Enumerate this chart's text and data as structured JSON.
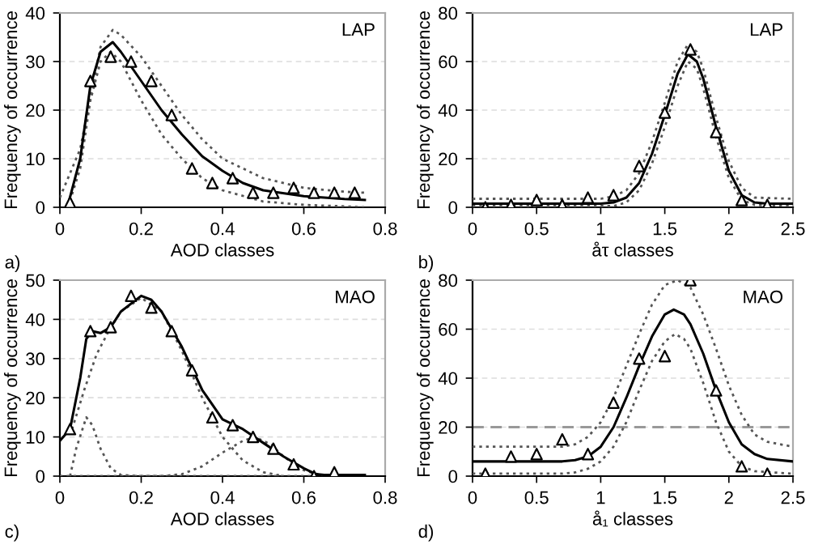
{
  "chart_data": [
    {
      "type": "scatter",
      "xlabel": "AOD classes",
      "ylabel": "Frequency of occurrence",
      "annotations": [
        "LAP",
        "a)"
      ],
      "xlim": [
        0,
        0.8
      ],
      "xticks": [
        0,
        0.2,
        0.4,
        0.6,
        0.8
      ],
      "ylim": [
        0,
        40
      ],
      "yticks": [
        0,
        10,
        20,
        30,
        40
      ],
      "grid": "y",
      "series": [
        {
          "type": "line",
          "line_style": "dotted",
          "color": "#555555",
          "x": [
            0.0,
            0.05,
            0.1,
            0.13,
            0.15,
            0.2,
            0.25,
            0.3,
            0.35,
            0.4,
            0.5,
            0.6,
            0.7,
            0.75
          ],
          "values": [
            2,
            12,
            33,
            36.5,
            35.5,
            31,
            25,
            19,
            14,
            10,
            6,
            4,
            3.2,
            3
          ]
        },
        {
          "type": "line",
          "line_style": "dotted",
          "color": "#555555",
          "x": [
            0.02,
            0.05,
            0.075,
            0.1,
            0.125,
            0.15,
            0.2,
            0.25,
            0.3,
            0.35,
            0.4,
            0.5,
            0.6,
            0.7,
            0.75
          ],
          "values": [
            0,
            8,
            22,
            30,
            32,
            30,
            22,
            15,
            10,
            6,
            3.5,
            1.2,
            0.5,
            0.2,
            0
          ]
        },
        {
          "type": "line",
          "line_style": "solid",
          "color": "#000000",
          "x": [
            0.02,
            0.05,
            0.075,
            0.1,
            0.13,
            0.15,
            0.2,
            0.25,
            0.3,
            0.35,
            0.4,
            0.45,
            0.5,
            0.6,
            0.7,
            0.75
          ],
          "values": [
            0.5,
            10,
            25,
            32,
            34,
            32,
            26,
            20,
            15,
            10.5,
            7.5,
            5,
            3.5,
            2.3,
            1.7,
            1.5
          ]
        },
        {
          "marker": "triangle",
          "color": "#000000",
          "x": [
            0.025,
            0.075,
            0.125,
            0.175,
            0.225,
            0.275,
            0.325,
            0.375,
            0.425,
            0.475,
            0.525,
            0.575,
            0.625,
            0.675,
            0.725
          ],
          "values": [
            1,
            26,
            31,
            30,
            26,
            19,
            8,
            5,
            6,
            3,
            3,
            4,
            3,
            3,
            3
          ]
        }
      ]
    },
    {
      "type": "scatter",
      "xlabel": "åτ classes",
      "ylabel": "Frequency of occurrence",
      "annotations": [
        "LAP",
        "b)"
      ],
      "xlim": [
        0,
        2.5
      ],
      "xticks": [
        0,
        0.5,
        1,
        1.5,
        2,
        2.5
      ],
      "ylim": [
        0,
        80
      ],
      "yticks": [
        0,
        20,
        40,
        60,
        80
      ],
      "grid": "y",
      "series": [
        {
          "type": "line",
          "line_style": "dotted",
          "color": "#555555",
          "x": [
            0,
            1.0,
            1.1,
            1.2,
            1.3,
            1.4,
            1.5,
            1.6,
            1.68,
            1.75,
            1.8,
            1.9,
            2.0,
            2.1,
            2.2,
            2.5
          ],
          "values": [
            3.5,
            3.5,
            4.5,
            7,
            14,
            27,
            43,
            60,
            67,
            64,
            57,
            37,
            19,
            8,
            4,
            3.5
          ]
        },
        {
          "type": "line",
          "line_style": "dotted",
          "color": "#555555",
          "x": [
            0,
            1.1,
            1.2,
            1.3,
            1.4,
            1.5,
            1.6,
            1.68,
            1.75,
            1.8,
            1.9,
            2.0,
            2.1,
            2.2,
            2.5
          ],
          "values": [
            0.5,
            0.5,
            2,
            7,
            18,
            33,
            50,
            60,
            57,
            49,
            29,
            12,
            3,
            1,
            0.5
          ]
        },
        {
          "type": "line",
          "line_style": "solid",
          "color": "#000000",
          "x": [
            0,
            1.0,
            1.1,
            1.2,
            1.3,
            1.4,
            1.5,
            1.6,
            1.68,
            1.75,
            1.8,
            1.9,
            2.0,
            2.1,
            2.2,
            2.3,
            2.5
          ],
          "values": [
            1.5,
            1.5,
            2,
            4,
            10,
            22,
            38,
            55,
            63,
            60,
            53,
            33,
            15,
            5,
            2,
            1.5,
            1.5
          ]
        },
        {
          "marker": "triangle",
          "color": "#000000",
          "x": [
            0.1,
            0.3,
            0.5,
            0.7,
            0.9,
            1.1,
            1.3,
            1.5,
            1.7,
            1.9,
            2.1,
            2.3
          ],
          "values": [
            0,
            1,
            3,
            1,
            4,
            5,
            17,
            39,
            65,
            31,
            3,
            1
          ]
        }
      ]
    },
    {
      "type": "scatter",
      "xlabel": "AOD classes",
      "ylabel": "Frequency of occurrence",
      "annotations": [
        "MAO",
        "c)"
      ],
      "xlim": [
        0,
        0.8
      ],
      "xticks": [
        0,
        0.2,
        0.4,
        0.6,
        0.8
      ],
      "ylim": [
        0,
        50
      ],
      "yticks": [
        0,
        10,
        20,
        30,
        40,
        50
      ],
      "grid": "y",
      "series": [
        {
          "type": "line",
          "line_style": "dotted",
          "color": "#555555",
          "x": [
            0.025,
            0.04,
            0.065,
            0.08,
            0.1,
            0.125,
            0.15,
            0.2,
            0.75
          ],
          "values": [
            0,
            7,
            15,
            13,
            7,
            2,
            0.3,
            0,
            0
          ]
        },
        {
          "type": "line",
          "line_style": "dotted",
          "color": "#555555",
          "x": [
            0.03,
            0.06,
            0.09,
            0.12,
            0.15,
            0.2,
            0.25,
            0.3,
            0.35,
            0.4,
            0.45,
            0.5,
            0.55
          ],
          "values": [
            12,
            22,
            31,
            37,
            42,
            45.5,
            42,
            32,
            20,
            10,
            4,
            1,
            0
          ]
        },
        {
          "type": "line",
          "line_style": "dotted",
          "color": "#555555",
          "x": [
            0,
            0.25,
            0.3,
            0.35,
            0.4,
            0.45,
            0.48,
            0.52,
            0.55,
            0.6,
            0.65,
            0.75
          ],
          "values": [
            0,
            0,
            0.5,
            2.5,
            6,
            9,
            10,
            8,
            5,
            1.5,
            0,
            0
          ]
        },
        {
          "type": "line",
          "line_style": "solid",
          "color": "#000000",
          "x": [
            0,
            0.025,
            0.05,
            0.065,
            0.08,
            0.1,
            0.125,
            0.15,
            0.2,
            0.225,
            0.25,
            0.3,
            0.35,
            0.4,
            0.45,
            0.5,
            0.55,
            0.6,
            0.63,
            0.65,
            0.7,
            0.75
          ],
          "values": [
            9,
            12,
            25,
            35,
            37,
            36.5,
            38,
            42,
            46,
            45,
            42,
            33,
            22,
            14.5,
            12,
            8.5,
            5,
            2,
            0.5,
            0.3,
            0.3,
            0.3
          ]
        },
        {
          "marker": "triangle",
          "color": "#000000",
          "x": [
            0.025,
            0.075,
            0.125,
            0.175,
            0.225,
            0.275,
            0.325,
            0.375,
            0.425,
            0.475,
            0.525,
            0.575,
            0.625,
            0.675
          ],
          "values": [
            12,
            37,
            38,
            46,
            43,
            37,
            27,
            15,
            13,
            10,
            7,
            3,
            0,
            1
          ]
        }
      ]
    },
    {
      "type": "scatter",
      "xlabel": "å₁ classes",
      "ylabel": "Frequency of occurrence",
      "annotations": [
        "MAO",
        "d)"
      ],
      "xlim": [
        0,
        2.5
      ],
      "xticks": [
        0,
        0.5,
        1,
        1.5,
        2,
        2.5
      ],
      "ylim": [
        0,
        80
      ],
      "yticks": [
        0,
        20,
        40,
        60,
        80
      ],
      "grid": "y",
      "ref_lines": [
        {
          "axis": "y",
          "value": 20,
          "color": "#999999",
          "line_style": "dashed"
        }
      ],
      "series": [
        {
          "type": "line",
          "line_style": "dotted",
          "color": "#555555",
          "x": [
            0,
            0.7,
            0.8,
            0.9,
            1.0,
            1.1,
            1.2,
            1.3,
            1.4,
            1.5,
            1.6,
            1.7,
            1.8,
            1.9,
            2.0,
            2.1,
            2.2,
            2.3,
            2.5
          ],
          "values": [
            12,
            12,
            13,
            16,
            22,
            32,
            45,
            58,
            70,
            78,
            80,
            77,
            66,
            52,
            37,
            25,
            17,
            14,
            12
          ]
        },
        {
          "type": "line",
          "line_style": "dotted",
          "color": "#555555",
          "x": [
            0,
            0.7,
            0.8,
            0.9,
            1.0,
            1.1,
            1.2,
            1.3,
            1.4,
            1.5,
            1.58,
            1.65,
            1.7,
            1.8,
            1.9,
            2.0,
            2.1,
            2.2,
            2.5
          ],
          "values": [
            1,
            1,
            1.5,
            3,
            6,
            12,
            22,
            35,
            47,
            55,
            58,
            56,
            52,
            38,
            22,
            10,
            4,
            2,
            1
          ]
        },
        {
          "type": "line",
          "line_style": "solid",
          "color": "#000000",
          "x": [
            0,
            0.7,
            0.8,
            0.9,
            1.0,
            1.1,
            1.2,
            1.3,
            1.4,
            1.5,
            1.57,
            1.65,
            1.7,
            1.8,
            1.9,
            2.0,
            2.1,
            2.2,
            2.3,
            2.5
          ],
          "values": [
            6,
            6,
            6.5,
            8,
            12,
            20,
            32,
            45,
            57,
            66,
            68,
            66,
            62,
            50,
            35,
            22,
            13,
            9,
            7,
            6
          ]
        },
        {
          "marker": "triangle",
          "color": "#000000",
          "x": [
            0.1,
            0.3,
            0.5,
            0.7,
            0.9,
            1.1,
            1.3,
            1.5,
            1.7,
            1.9,
            2.1,
            2.3
          ],
          "values": [
            1,
            8,
            9,
            15,
            9,
            30,
            48,
            49,
            80,
            35,
            4,
            1
          ]
        }
      ]
    }
  ]
}
